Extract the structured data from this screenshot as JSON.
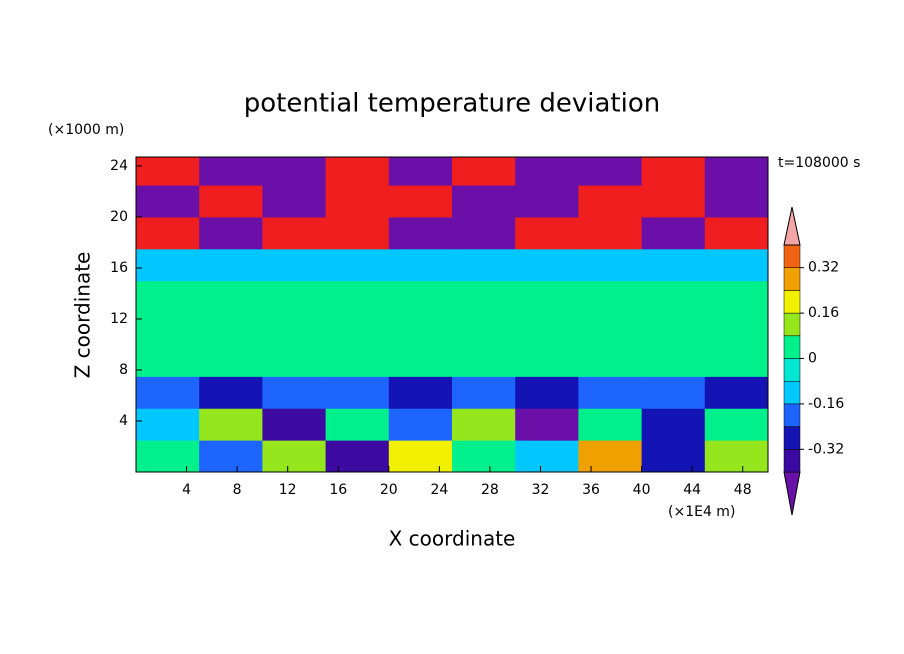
{
  "chart_data": {
    "type": "contour",
    "title": "potential temperature deviation",
    "y_unit": "(×1000 m)",
    "x_unit": "(×1E4 m)",
    "time_label": "t=108000 s",
    "xlabel": "X coordinate",
    "ylabel": "Z coordinate",
    "xlim": [
      0,
      50
    ],
    "ylim": [
      0,
      24.7
    ],
    "xticks": [
      4,
      8,
      12,
      16,
      20,
      24,
      28,
      32,
      36,
      40,
      44,
      48
    ],
    "yticks": [
      4,
      8,
      12,
      16,
      20,
      24
    ],
    "x_edges": [
      0,
      5,
      10,
      15,
      20,
      25,
      30,
      35,
      40,
      45,
      50
    ],
    "z_edges": [
      0,
      2.5,
      5,
      7.5,
      10,
      12.5,
      15,
      17.5,
      20,
      22.5,
      24.7
    ],
    "values": [
      [
        0.05,
        -0.2,
        0.12,
        -0.35,
        0.2,
        0.05,
        -0.1,
        0.25,
        -0.3,
        0.1
      ],
      [
        -0.1,
        0.1,
        -0.35,
        0.05,
        -0.2,
        0.15,
        -0.45,
        0.05,
        -0.3,
        0.02
      ],
      [
        -0.2,
        -0.25,
        -0.2,
        -0.2,
        -0.25,
        -0.2,
        -0.25,
        -0.2,
        -0.2,
        -0.25
      ],
      [
        0.02,
        0.06,
        0.02,
        0.04,
        0.02,
        0.02,
        0.06,
        0.02,
        0.04,
        0.02
      ],
      [
        0.02,
        0.06,
        0.02,
        0.06,
        0.02,
        0.02,
        0.02,
        0.06,
        0.02,
        0.06
      ],
      [
        0.02,
        0.06,
        0.02,
        0.02,
        0.06,
        0.02,
        0.06,
        0.02,
        0.02,
        0.04
      ],
      [
        -0.1,
        -0.12,
        -0.1,
        -0.1,
        -0.12,
        -0.1,
        -0.1,
        -0.12,
        -0.1,
        -0.1
      ],
      [
        0.5,
        -0.5,
        0.5,
        0.5,
        -0.5,
        -0.5,
        0.5,
        0.5,
        -0.5,
        0.5
      ],
      [
        -0.5,
        0.5,
        -0.5,
        0.5,
        0.5,
        -0.5,
        -0.5,
        0.5,
        0.5,
        -0.5
      ],
      [
        0.5,
        -0.5,
        -0.5,
        0.5,
        -0.5,
        0.5,
        -0.5,
        -0.5,
        0.5,
        -0.5
      ]
    ],
    "levels": [
      -0.4,
      -0.32,
      -0.24,
      -0.16,
      -0.08,
      0,
      0.08,
      0.16,
      0.24,
      0.32,
      0.4
    ],
    "colors": [
      "#6a10a8",
      "#3c0aa0",
      "#1414b4",
      "#1e64ff",
      "#00c8ff",
      "#00e6d2",
      "#00f08c",
      "#96e61e",
      "#f0f000",
      "#f0a000",
      "#f06414",
      "#f01e1e",
      "#f4a6a6"
    ],
    "colorbar_ticks": [
      -0.32,
      -0.16,
      0,
      0.16,
      0.32
    ]
  }
}
